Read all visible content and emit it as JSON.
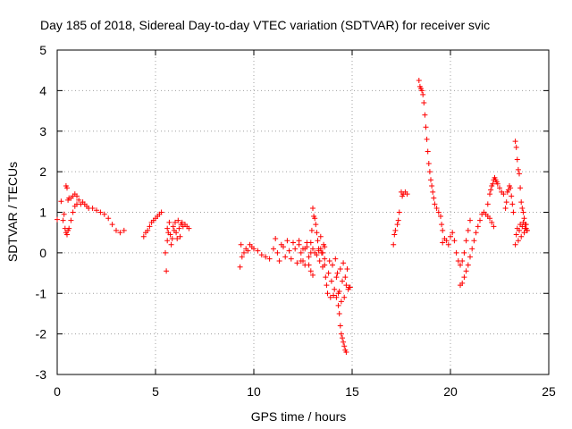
{
  "chart_data": {
    "type": "scatter",
    "title": "Day 185 of 2018, Sidereal Day-to-day VTEC variation (SDTVAR) for receiver svic",
    "xlabel": "GPS time / hours",
    "ylabel": "SDTVAR / TECUs",
    "xlim": [
      0,
      25
    ],
    "ylim": [
      -3,
      5
    ],
    "xticks": [
      0,
      5,
      10,
      15,
      20,
      25
    ],
    "yticks": [
      -3,
      -2,
      -1,
      0,
      1,
      2,
      3,
      4,
      5
    ],
    "grid": true,
    "marker": "+",
    "color": "#ff0000",
    "series": [
      {
        "name": "SDTVAR",
        "segments": [
          {
            "x": [
              0.0,
              0.2,
              0.3,
              0.35,
              0.4,
              0.45,
              0.5,
              0.55,
              0.6,
              0.7,
              0.8,
              0.9,
              1.0
            ],
            "y": [
              0.82,
              1.27,
              0.8,
              0.95,
              0.6,
              0.5,
              0.45,
              0.55,
              0.6,
              0.8,
              1.0,
              1.15,
              1.2
            ]
          },
          {
            "x": [
              0.45,
              0.5,
              0.55,
              0.6,
              0.7,
              0.8,
              0.9,
              1.0,
              1.1,
              1.2,
              1.3,
              1.4,
              1.5,
              1.6,
              1.8,
              2.0,
              2.2,
              2.4,
              2.6,
              2.8,
              3.0,
              3.2,
              3.4
            ],
            "y": [
              1.65,
              1.6,
              1.3,
              1.35,
              1.35,
              1.4,
              1.45,
              1.4,
              1.3,
              1.2,
              1.25,
              1.2,
              1.15,
              1.1,
              1.1,
              1.05,
              1.0,
              0.95,
              0.85,
              0.7,
              0.55,
              0.5,
              0.55
            ]
          },
          {
            "x": [
              4.4,
              4.5,
              4.6,
              4.7,
              4.8,
              4.9,
              5.0,
              5.1,
              5.2,
              5.3
            ],
            "y": [
              0.4,
              0.5,
              0.55,
              0.65,
              0.75,
              0.8,
              0.85,
              0.9,
              0.95,
              1.0
            ]
          },
          {
            "x": [
              5.5,
              5.55,
              5.6,
              5.6,
              5.65,
              5.7,
              5.75,
              5.8,
              5.85,
              5.9,
              5.95,
              6.0,
              6.05,
              6.1,
              6.15,
              6.2,
              6.25,
              6.3,
              6.35,
              6.4,
              6.5,
              6.6,
              6.7
            ],
            "y": [
              0.0,
              -0.45,
              0.6,
              0.3,
              0.5,
              0.75,
              0.45,
              0.2,
              0.35,
              0.65,
              0.55,
              0.75,
              0.5,
              0.35,
              0.8,
              0.6,
              0.4,
              0.7,
              0.75,
              0.65,
              0.7,
              0.65,
              0.6
            ]
          },
          {
            "x": [
              9.3,
              9.35,
              9.4,
              9.5,
              9.6,
              9.7,
              9.8,
              9.9,
              10.0,
              10.2,
              10.4,
              10.6,
              10.8,
              11.0,
              11.1,
              11.2,
              11.3,
              11.4,
              11.5,
              11.6,
              11.7,
              11.8,
              11.9,
              12.0,
              12.1,
              12.2,
              12.3,
              12.4,
              12.5,
              12.6,
              12.7,
              12.8,
              12.9,
              13.0
            ],
            "y": [
              -0.35,
              0.2,
              -0.1,
              0.0,
              0.1,
              0.05,
              0.2,
              0.15,
              0.1,
              0.05,
              -0.05,
              -0.1,
              -0.15,
              0.1,
              0.35,
              0.0,
              -0.2,
              0.2,
              0.15,
              -0.1,
              0.3,
              0.05,
              -0.15,
              0.25,
              0.1,
              -0.25,
              0.3,
              0.0,
              -0.2,
              0.1,
              0.25,
              -0.3,
              -0.45,
              -0.55
            ]
          },
          {
            "x": [
              12.3,
              12.4,
              12.5,
              12.6,
              12.7,
              12.8,
              12.9,
              13.0,
              13.1,
              13.2,
              13.3,
              13.4,
              13.5,
              13.6
            ],
            "y": [
              0.2,
              -0.2,
              0.1,
              -0.3,
              0.15,
              -0.1,
              0.0,
              0.1,
              0.0,
              -0.05,
              0.05,
              0.1,
              0.0,
              0.15
            ]
          },
          {
            "x": [
              12.9,
              12.95,
              13.0,
              13.05,
              13.1,
              13.15,
              13.2,
              13.25,
              13.3,
              13.35,
              13.4,
              13.45,
              13.5,
              13.55,
              13.6
            ],
            "y": [
              0.25,
              0.55,
              1.1,
              0.9,
              0.85,
              0.7,
              0.5,
              0.3,
              0.1,
              -0.2,
              0.4,
              0.0,
              -0.35,
              0.2,
              -0.15
            ]
          },
          {
            "x": [
              13.6,
              13.7,
              13.8,
              13.9,
              14.0,
              14.1,
              14.2,
              14.3,
              14.4,
              14.5,
              14.6,
              14.7,
              14.8,
              14.9
            ],
            "y": [
              -0.3,
              -0.8,
              -0.5,
              -1.1,
              -0.3,
              -0.9,
              -0.6,
              -1.0,
              -0.4,
              -0.7,
              -1.1,
              -0.8,
              -0.9,
              -0.85
            ]
          },
          {
            "x": [
              13.65,
              13.75,
              13.85,
              13.95,
              14.05,
              14.15,
              14.25,
              14.35,
              14.45,
              14.55,
              14.65,
              14.75,
              14.85
            ],
            "y": [
              -0.6,
              -1.0,
              -0.2,
              -0.7,
              -1.05,
              -0.15,
              -0.5,
              -0.95,
              -1.2,
              -0.25,
              -0.6,
              -0.4,
              -0.85
            ]
          },
          {
            "x": [
              14.2,
              14.3,
              14.35,
              14.4,
              14.45,
              14.5,
              14.55,
              14.6,
              14.65,
              14.7
            ],
            "y": [
              -1.1,
              -1.3,
              -1.5,
              -1.8,
              -2.0,
              -2.1,
              -2.2,
              -2.3,
              -2.4,
              -2.45
            ]
          },
          {
            "x": [
              17.1,
              17.15,
              17.2,
              17.3,
              17.35,
              17.4,
              17.5,
              17.55,
              17.6,
              17.7,
              17.8
            ],
            "y": [
              0.2,
              0.45,
              0.55,
              0.7,
              0.8,
              1.0,
              1.5,
              1.4,
              1.45,
              1.5,
              1.45
            ]
          },
          {
            "x": [
              18.4,
              18.45,
              18.5,
              18.55,
              18.6,
              18.65,
              18.7,
              18.75,
              18.8,
              18.85,
              18.9,
              18.95,
              19.0,
              19.05,
              19.1,
              19.15,
              19.2,
              19.3,
              19.4,
              19.5,
              19.55,
              19.6
            ],
            "y": [
              4.25,
              4.1,
              4.05,
              4.0,
              3.9,
              3.7,
              3.4,
              3.1,
              2.8,
              2.5,
              2.2,
              2.0,
              1.8,
              1.65,
              1.5,
              1.35,
              1.2,
              1.1,
              1.0,
              0.9,
              0.7,
              0.55
            ]
          },
          {
            "x": [
              19.6,
              19.7,
              19.8,
              19.9,
              20.0,
              20.1,
              20.2,
              20.3,
              20.4,
              20.5,
              20.6,
              20.7,
              20.8,
              20.9,
              21.0
            ],
            "y": [
              0.25,
              0.35,
              0.3,
              0.2,
              0.4,
              0.5,
              0.3,
              0.0,
              -0.2,
              -0.3,
              -0.2,
              0.0,
              0.3,
              0.55,
              0.8
            ]
          },
          {
            "x": [
              20.5,
              20.6,
              20.7,
              20.8,
              20.9,
              21.0,
              21.1,
              21.2,
              21.3,
              21.4,
              21.5,
              21.6,
              21.7,
              21.8,
              21.9,
              22.0,
              22.1,
              22.2
            ],
            "y": [
              -0.8,
              -0.75,
              -0.6,
              -0.45,
              -0.3,
              -0.1,
              0.1,
              0.3,
              0.5,
              0.65,
              0.8,
              0.95,
              1.0,
              0.95,
              0.9,
              0.85,
              0.75,
              0.65
            ]
          },
          {
            "x": [
              21.9,
              22.0,
              22.05,
              22.1,
              22.15,
              22.2,
              22.25,
              22.3,
              22.35,
              22.4,
              22.5,
              22.6,
              22.7
            ],
            "y": [
              1.2,
              1.45,
              1.55,
              1.65,
              1.7,
              1.8,
              1.85,
              1.8,
              1.75,
              1.7,
              1.6,
              1.5,
              1.45
            ]
          },
          {
            "x": [
              22.8,
              22.85,
              22.9,
              22.95,
              23.0,
              23.05,
              23.1,
              23.15,
              23.2
            ],
            "y": [
              1.1,
              1.25,
              1.5,
              1.55,
              1.65,
              1.6,
              1.4,
              1.2,
              1.0
            ]
          },
          {
            "x": [
              23.3,
              23.35,
              23.4,
              23.45,
              23.5,
              23.55,
              23.6,
              23.65,
              23.7,
              23.75,
              23.8,
              23.85,
              23.9
            ],
            "y": [
              2.75,
              2.6,
              2.3,
              2.05,
              1.95,
              1.6,
              1.25,
              1.1,
              1.0,
              0.85,
              0.7,
              0.6,
              0.55
            ]
          },
          {
            "x": [
              23.3,
              23.35,
              23.4,
              23.45,
              23.5,
              23.55,
              23.6,
              23.65,
              23.7,
              23.75,
              23.8,
              23.85,
              23.9
            ],
            "y": [
              0.2,
              0.45,
              0.6,
              0.3,
              0.55,
              0.7,
              0.4,
              0.65,
              0.75,
              0.5,
              0.6,
              0.7,
              0.55
            ]
          }
        ]
      }
    ]
  }
}
